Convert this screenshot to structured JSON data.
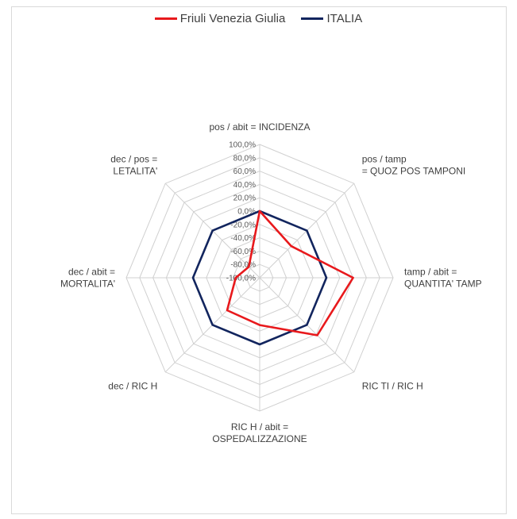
{
  "chart_data": {
    "type": "radar",
    "categories": [
      [
        "pos / abit = INCIDENZA"
      ],
      [
        "pos / tamp",
        "= QUOZ POS TAMPONI"
      ],
      [
        "tamp / abit =",
        "QUANTITA' TAMP"
      ],
      [
        "RIC TI / RIC H"
      ],
      [
        "RIC H / abit =",
        "OSPEDALIZZAZIONE"
      ],
      [
        "dec  / RIC H"
      ],
      [
        "dec / abit =",
        "MORTALITA'"
      ],
      [
        "dec / pos =",
        "LETALITA'"
      ]
    ],
    "rlim": [
      -100,
      100
    ],
    "ticks": [
      "100,0%",
      "80,0%",
      "60,0%",
      "40,0%",
      "20,0%",
      "0,0%",
      "-20,0%",
      "-40,0%",
      "-60,0%",
      "-80,0%",
      "-100,0%"
    ],
    "tick_values": [
      100,
      80,
      60,
      40,
      20,
      0,
      -20,
      -40,
      -60,
      -80,
      -100
    ],
    "legend_position": "top",
    "series": [
      {
        "name": "Friuli Venezia Giulia",
        "color": "#e8191c",
        "values": [
          0,
          -33,
          40,
          22,
          -29,
          -31,
          -64,
          -77
        ]
      },
      {
        "name": "ITALIA",
        "color": "#12255e",
        "values": [
          0,
          0,
          0,
          0,
          0,
          0,
          0,
          0
        ]
      }
    ]
  }
}
